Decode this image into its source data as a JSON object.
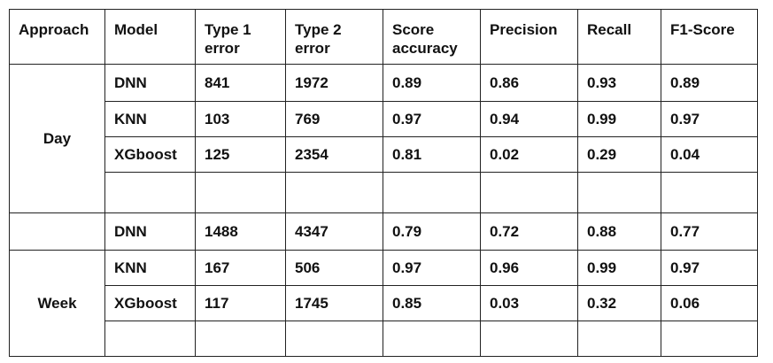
{
  "table": {
    "header": [
      "Approach",
      "Model",
      "Type 1 error",
      "Type 2 error",
      "Score accuracy",
      "Precision",
      "Recall",
      "F1-Score"
    ],
    "groups": [
      {
        "approach": "Day",
        "rows": [
          [
            "DNN",
            841,
            1972,
            0.89,
            0.86,
            0.93,
            0.89
          ],
          [
            "KNN",
            103,
            769,
            0.97,
            0.94,
            0.99,
            0.97
          ],
          [
            "XGboost",
            125,
            2354,
            0.81,
            0.02,
            0.29,
            0.04
          ]
        ]
      },
      {
        "approach": "Week",
        "rows": [
          [
            "DNN",
            1488,
            4347,
            0.79,
            0.72,
            0.88,
            0.77
          ],
          [
            "KNN",
            167,
            506,
            0.97,
            0.96,
            0.99,
            0.97
          ],
          [
            "XGboost",
            117,
            1745,
            0.85,
            0.03,
            0.32,
            0.06
          ]
        ]
      }
    ]
  }
}
